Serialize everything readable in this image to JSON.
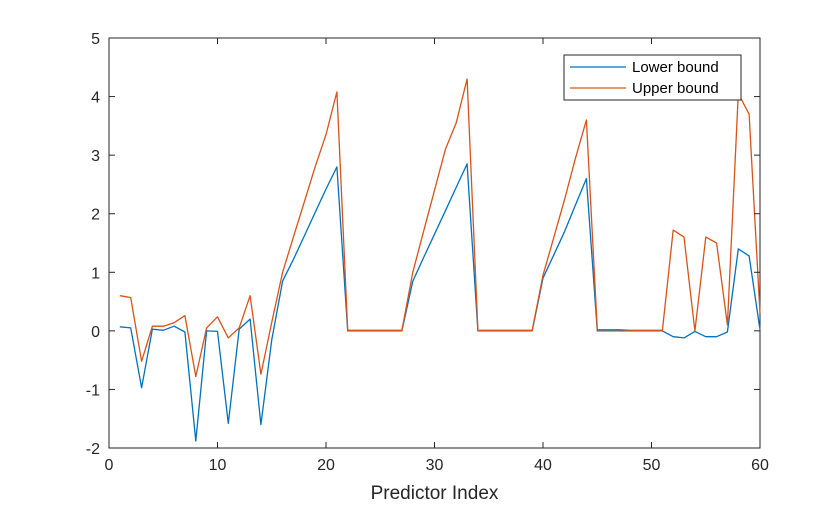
{
  "chart_data": {
    "type": "line",
    "title": "",
    "xlabel": "Predictor Index",
    "ylabel": "",
    "xlim": [
      0,
      60
    ],
    "ylim": [
      -2,
      5
    ],
    "xticks": [
      0,
      10,
      20,
      30,
      40,
      50,
      60
    ],
    "xtick_labels": [
      "0",
      "10",
      "20",
      "30",
      "40",
      "50",
      "60"
    ],
    "yticks": [
      -2,
      -1,
      0,
      1,
      2,
      3,
      4,
      5
    ],
    "ytick_labels": [
      "-2",
      "-1",
      "0",
      "1",
      "2",
      "3",
      "4",
      "5"
    ],
    "grid": false,
    "legend_position": "top-right",
    "x": [
      1,
      2,
      3,
      4,
      5,
      6,
      7,
      8,
      9,
      10,
      11,
      12,
      13,
      14,
      15,
      16,
      17,
      18,
      19,
      20,
      21,
      22,
      23,
      24,
      25,
      26,
      27,
      28,
      29,
      30,
      31,
      32,
      33,
      34,
      35,
      36,
      37,
      38,
      39,
      40,
      41,
      42,
      43,
      44,
      45,
      46,
      47,
      48,
      49,
      50,
      51,
      52,
      53,
      54,
      55,
      56,
      57,
      58,
      59,
      60
    ],
    "series": [
      {
        "name": "Lower bound",
        "color": "#0072BD",
        "values": [
          0.07,
          0.05,
          -0.97,
          0.03,
          0.01,
          0.08,
          -0.02,
          -1.88,
          0.0,
          -0.01,
          -1.58,
          0.03,
          0.2,
          -1.6,
          -0.15,
          0.85,
          1.22,
          1.62,
          2.02,
          2.42,
          2.8,
          0.0,
          0.0,
          0.0,
          0.0,
          0.0,
          0.0,
          0.85,
          1.25,
          1.65,
          2.05,
          2.45,
          2.85,
          0.0,
          0.0,
          0.0,
          0.0,
          0.0,
          0.0,
          0.9,
          1.3,
          1.7,
          2.15,
          2.6,
          0.0,
          0.0,
          0.0,
          0.0,
          0.0,
          0.0,
          0.0,
          -0.1,
          -0.12,
          -0.01,
          -0.1,
          -0.1,
          -0.02,
          1.4,
          1.28,
          0.02
        ]
      },
      {
        "name": "Upper bound",
        "color": "#D95319",
        "values": [
          0.6,
          0.57,
          -0.52,
          0.08,
          0.08,
          0.14,
          0.26,
          -0.78,
          0.05,
          0.24,
          -0.12,
          0.05,
          0.6,
          -0.74,
          0.15,
          1.0,
          1.6,
          2.2,
          2.8,
          3.35,
          4.08,
          0.01,
          0.01,
          0.01,
          0.01,
          0.01,
          0.01,
          1.0,
          1.7,
          2.4,
          3.1,
          3.55,
          4.3,
          0.01,
          0.01,
          0.01,
          0.01,
          0.01,
          0.01,
          0.95,
          1.6,
          2.25,
          2.95,
          3.6,
          0.02,
          0.02,
          0.02,
          0.01,
          0.01,
          0.01,
          0.01,
          1.72,
          1.6,
          0.0,
          1.6,
          1.5,
          0.1,
          4.05,
          3.7,
          0.3
        ]
      }
    ]
  }
}
